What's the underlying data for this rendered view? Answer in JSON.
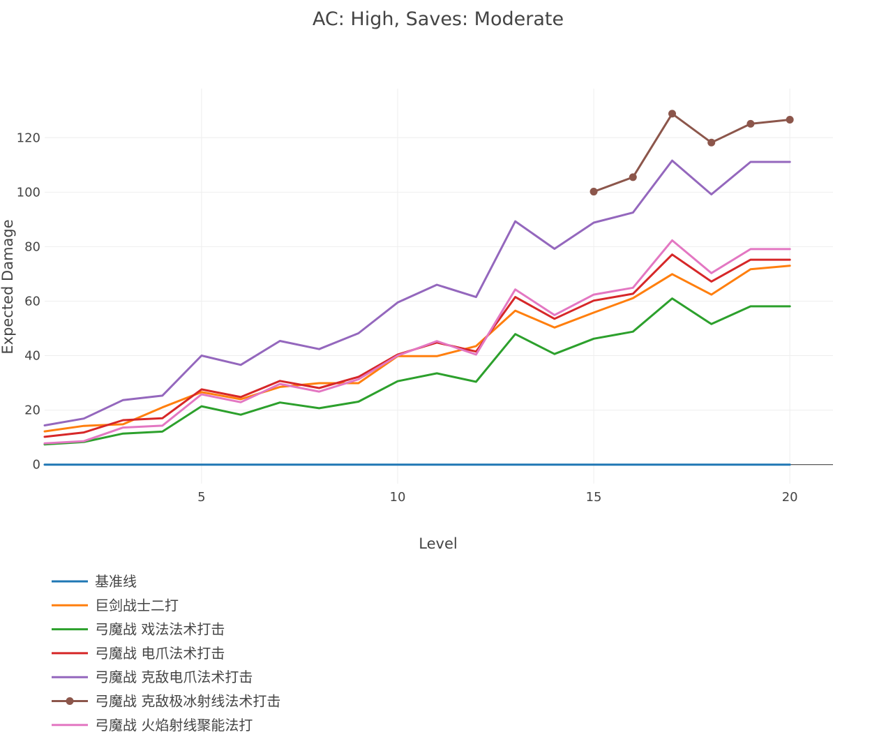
{
  "chart_data": {
    "type": "line",
    "title": "AC: High, Saves: Moderate",
    "xlabel": "Level",
    "ylabel": "Expected Damage",
    "xlim": [
      1,
      21.1
    ],
    "ylim": [
      -7,
      138
    ],
    "xticks": [
      5,
      10,
      15,
      20
    ],
    "yticks": [
      0,
      20,
      40,
      60,
      80,
      100,
      120
    ],
    "grid": true,
    "legend_position": "bottom-left",
    "series": [
      {
        "name": "基准线",
        "color": "#1f77b4",
        "markers": false,
        "x": [
          1,
          2,
          3,
          4,
          5,
          6,
          7,
          8,
          9,
          10,
          11,
          12,
          13,
          14,
          15,
          16,
          17,
          18,
          19,
          20
        ],
        "values": [
          0,
          0,
          0,
          0,
          0,
          0,
          0,
          0,
          0,
          0,
          0,
          0,
          0,
          0,
          0,
          0,
          0,
          0,
          0,
          0
        ]
      },
      {
        "name": "巨剑战士二打",
        "color": "#ff7f0e",
        "markers": false,
        "x": [
          1,
          2,
          3,
          4,
          5,
          6,
          7,
          8,
          9,
          10,
          11,
          12,
          13,
          14,
          15,
          16,
          17,
          18,
          19,
          20
        ],
        "values": [
          12.2,
          14.2,
          14.8,
          21.0,
          26.6,
          24.0,
          28.5,
          29.9,
          29.9,
          39.8,
          39.8,
          43.5,
          56.5,
          50.3,
          55.8,
          61.1,
          69.9,
          62.4,
          71.7,
          73.0
        ]
      },
      {
        "name": "弓魔战 戏法法术打击",
        "color": "#2ca02c",
        "markers": false,
        "x": [
          1,
          2,
          3,
          4,
          5,
          6,
          7,
          8,
          9,
          10,
          11,
          12,
          13,
          14,
          15,
          16,
          17,
          18,
          19,
          20
        ],
        "values": [
          7.4,
          8.3,
          11.4,
          12.1,
          21.4,
          18.3,
          22.8,
          20.7,
          23.1,
          30.6,
          33.5,
          30.4,
          47.9,
          40.6,
          46.2,
          48.8,
          61.0,
          51.6,
          58.1,
          58.1
        ]
      },
      {
        "name": "弓魔战 电爪法术打击",
        "color": "#d62728",
        "markers": false,
        "x": [
          1,
          2,
          3,
          4,
          5,
          6,
          7,
          8,
          9,
          10,
          11,
          12,
          13,
          14,
          15,
          16,
          17,
          18,
          19,
          20
        ],
        "values": [
          10.2,
          11.8,
          16.3,
          17.0,
          27.6,
          24.8,
          30.7,
          28.1,
          32.2,
          40.4,
          44.8,
          41.5,
          61.5,
          53.5,
          60.2,
          62.7,
          77.1,
          67.2,
          75.2,
          75.2
        ]
      },
      {
        "name": "弓魔战 克敌电爪法术打击",
        "color": "#9467bd",
        "markers": false,
        "x": [
          1,
          2,
          3,
          4,
          5,
          6,
          7,
          8,
          9,
          10,
          11,
          12,
          13,
          14,
          15,
          16,
          17,
          18,
          19,
          20
        ],
        "values": [
          14.4,
          16.9,
          23.7,
          25.3,
          40.0,
          36.6,
          45.4,
          42.4,
          48.2,
          59.5,
          66.0,
          61.5,
          89.3,
          79.2,
          88.8,
          92.5,
          111.6,
          99.2,
          111.1,
          111.1
        ]
      },
      {
        "name": "弓魔战 克敌极冰射线法术打击",
        "color": "#8c564b",
        "markers": true,
        "x": [
          15,
          16,
          17,
          18,
          19,
          20
        ],
        "values": [
          100.2,
          105.5,
          128.8,
          118.2,
          125.1,
          126.6
        ]
      },
      {
        "name": "弓魔战 火焰射线聚能法打",
        "color": "#e377c2",
        "markers": false,
        "x": [
          1,
          2,
          3,
          4,
          5,
          6,
          7,
          8,
          9,
          10,
          11,
          12,
          13,
          14,
          15,
          16,
          17,
          18,
          19,
          20
        ],
        "values": [
          7.8,
          8.6,
          13.6,
          14.3,
          25.8,
          22.9,
          29.6,
          26.8,
          31.3,
          40.0,
          45.3,
          40.4,
          64.3,
          54.9,
          62.4,
          64.9,
          82.3,
          70.3,
          79.1,
          79.1
        ]
      }
    ]
  }
}
